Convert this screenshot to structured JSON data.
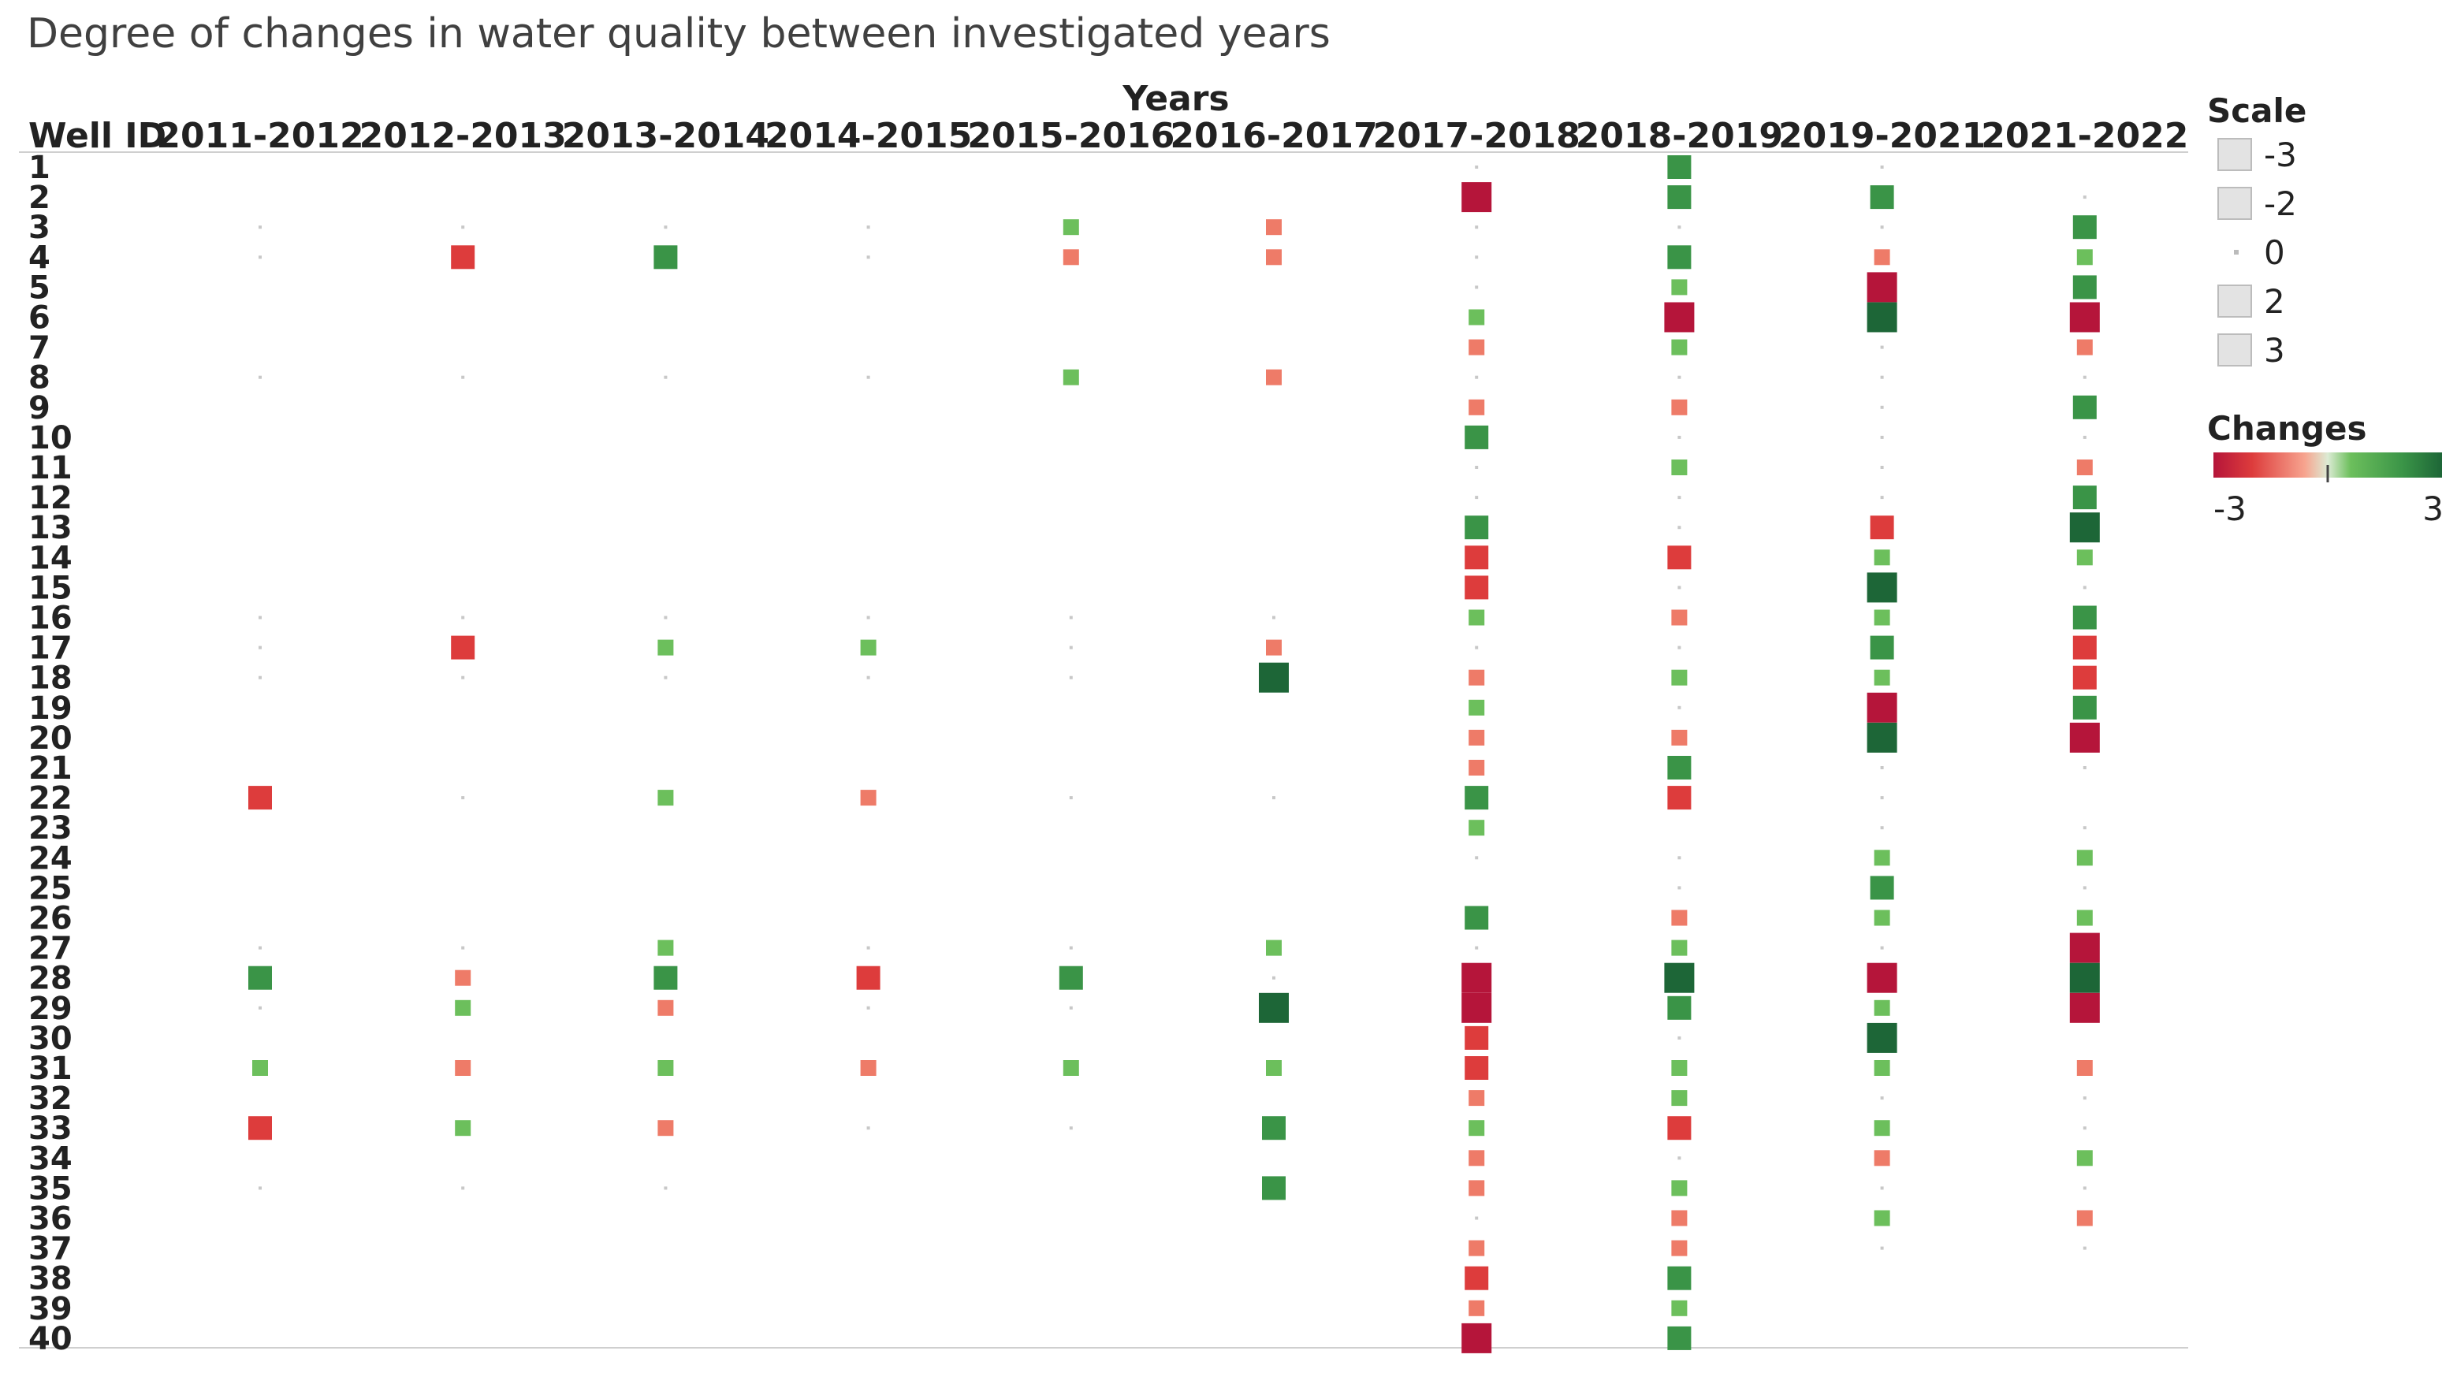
{
  "chart_data": {
    "type": "heatmap",
    "title": "Degree of changes in water quality between investigated years",
    "column_group_label": "Years",
    "row_header": "Well ID",
    "categories": [
      "2011-2012",
      "2012-2013",
      "2013-2014",
      "2014-2015",
      "2015-2016",
      "2016-2017",
      "2017-2018",
      "2018-2019",
      "2019-2021",
      "2021-2022"
    ],
    "wells": [
      "1",
      "2",
      "3",
      "4",
      "5",
      "6",
      "7",
      "8",
      "9",
      "10",
      "11",
      "12",
      "13",
      "14",
      "15",
      "16",
      "17",
      "18",
      "19",
      "20",
      "21",
      "22",
      "23",
      "24",
      "25",
      "26",
      "27",
      "28",
      "29",
      "30",
      "31",
      "32",
      "33",
      "34",
      "35",
      "36",
      "37",
      "38",
      "39",
      "40"
    ],
    "values": [
      [
        null,
        null,
        null,
        null,
        null,
        null,
        0,
        2,
        0,
        null
      ],
      [
        null,
        null,
        null,
        null,
        null,
        null,
        -3,
        2,
        2,
        0
      ],
      [
        0,
        0,
        0,
        0,
        1,
        -1,
        0,
        0,
        0,
        2
      ],
      [
        0,
        -2,
        2,
        0,
        -1,
        -1,
        0,
        2,
        -1,
        1
      ],
      [
        null,
        null,
        null,
        null,
        null,
        null,
        0,
        1,
        -3,
        2
      ],
      [
        null,
        null,
        null,
        null,
        null,
        null,
        1,
        -3,
        3,
        -3
      ],
      [
        null,
        null,
        null,
        null,
        null,
        null,
        -1,
        1,
        0,
        -1
      ],
      [
        0,
        0,
        0,
        0,
        1,
        -1,
        0,
        0,
        0,
        0
      ],
      [
        null,
        null,
        null,
        null,
        null,
        null,
        -1,
        -1,
        0,
        2
      ],
      [
        null,
        null,
        null,
        null,
        null,
        null,
        2,
        0,
        0,
        0
      ],
      [
        null,
        null,
        null,
        null,
        null,
        null,
        0,
        1,
        0,
        -1
      ],
      [
        null,
        null,
        null,
        null,
        null,
        null,
        0,
        0,
        0,
        2
      ],
      [
        null,
        null,
        null,
        null,
        null,
        null,
        2,
        0,
        -2,
        3
      ],
      [
        null,
        null,
        null,
        null,
        null,
        null,
        -2,
        -2,
        1,
        1
      ],
      [
        null,
        null,
        null,
        null,
        null,
        null,
        -2,
        0,
        3,
        0
      ],
      [
        0,
        0,
        0,
        0,
        0,
        0,
        1,
        -1,
        1,
        2
      ],
      [
        0,
        -2,
        1,
        1,
        0,
        -1,
        0,
        0,
        2,
        -2
      ],
      [
        0,
        0,
        0,
        0,
        0,
        3,
        -1,
        1,
        1,
        -2
      ],
      [
        null,
        null,
        null,
        null,
        null,
        null,
        1,
        0,
        -3,
        2
      ],
      [
        null,
        null,
        null,
        null,
        null,
        null,
        -1,
        -1,
        3,
        -3
      ],
      [
        null,
        null,
        null,
        null,
        null,
        null,
        -1,
        2,
        0,
        0
      ],
      [
        -2,
        0,
        1,
        -1,
        0,
        0,
        2,
        -2,
        0,
        null
      ],
      [
        null,
        null,
        null,
        null,
        null,
        null,
        1,
        null,
        0,
        0
      ],
      [
        null,
        null,
        null,
        null,
        null,
        null,
        0,
        0,
        1,
        1
      ],
      [
        null,
        null,
        null,
        null,
        null,
        null,
        null,
        0,
        2,
        0
      ],
      [
        null,
        null,
        null,
        null,
        null,
        null,
        2,
        -1,
        1,
        1
      ],
      [
        0,
        0,
        1,
        0,
        0,
        1,
        0,
        1,
        0,
        -3
      ],
      [
        2,
        -1,
        2,
        -2,
        2,
        0,
        -3,
        3,
        -3,
        3
      ],
      [
        0,
        1,
        -1,
        0,
        0,
        3,
        -3,
        2,
        1,
        -3
      ],
      [
        null,
        null,
        null,
        null,
        null,
        null,
        -2,
        0,
        3,
        null
      ],
      [
        1,
        -1,
        1,
        -1,
        1,
        1,
        -2,
        1,
        1,
        -1
      ],
      [
        null,
        null,
        null,
        null,
        null,
        null,
        -1,
        1,
        0,
        0
      ],
      [
        -2,
        1,
        -1,
        0,
        0,
        2,
        1,
        -2,
        1,
        0
      ],
      [
        null,
        null,
        null,
        null,
        null,
        null,
        -1,
        0,
        -1,
        1
      ],
      [
        0,
        0,
        0,
        null,
        null,
        2,
        -1,
        1,
        0,
        0
      ],
      [
        null,
        null,
        null,
        null,
        null,
        null,
        0,
        -1,
        1,
        -1
      ],
      [
        null,
        null,
        null,
        null,
        null,
        null,
        -1,
        -1,
        0,
        0
      ],
      [
        null,
        null,
        null,
        null,
        null,
        null,
        -2,
        2,
        null,
        null
      ],
      [
        null,
        null,
        null,
        null,
        null,
        null,
        -1,
        1,
        null,
        null
      ],
      [
        null,
        null,
        null,
        null,
        null,
        null,
        -3,
        2,
        null,
        null
      ]
    ],
    "size_legend": {
      "title": "Scale",
      "values": [
        -3,
        -2,
        0,
        2,
        3
      ],
      "labels": [
        "-3",
        "-2",
        "0",
        "2",
        "3"
      ]
    },
    "color_legend": {
      "title": "Changes",
      "min_label": "-3",
      "max_label": "3",
      "range": [
        -3,
        3
      ]
    },
    "colors": {
      "neg3": "#b5153a",
      "neg2": "#dd3c3c",
      "neg1": "#ee7b68",
      "zero": "#c8c8c8",
      "pos1": "#6cbf5c",
      "pos2": "#3a9447",
      "pos3": "#1d6637"
    }
  }
}
